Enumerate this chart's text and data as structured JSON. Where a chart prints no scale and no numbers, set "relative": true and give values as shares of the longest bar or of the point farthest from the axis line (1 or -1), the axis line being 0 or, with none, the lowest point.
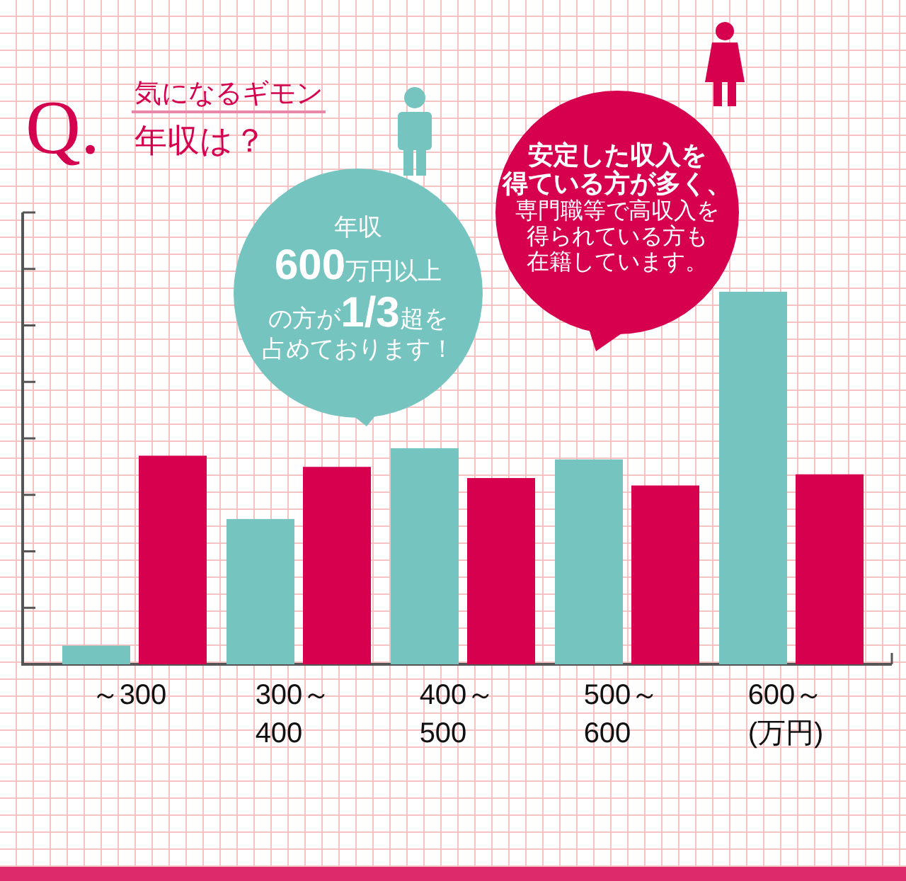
{
  "chart_data": {
    "type": "bar",
    "title": "年収は？",
    "subtitle": "気になるギモン",
    "categories": [
      "～300",
      "300～\n400",
      "400～\n500",
      "500～\n600",
      "600～\n(万円)"
    ],
    "relative": true,
    "series": [
      {
        "color": "#76c4c0",
        "values": [
          0.05,
          0.39,
          0.58,
          0.55,
          1
        ]
      },
      {
        "color": "#d6004f",
        "values": [
          0.56,
          0.53,
          0.5,
          0.48,
          0.51
        ]
      }
    ],
    "annotations": [
      "Q.",
      "年収600万円以上の方が1/3超を占めております！",
      "安定した収入を得ている方が多く、専門職等で高収入を得られている方も在籍しています。"
    ]
  }
}
